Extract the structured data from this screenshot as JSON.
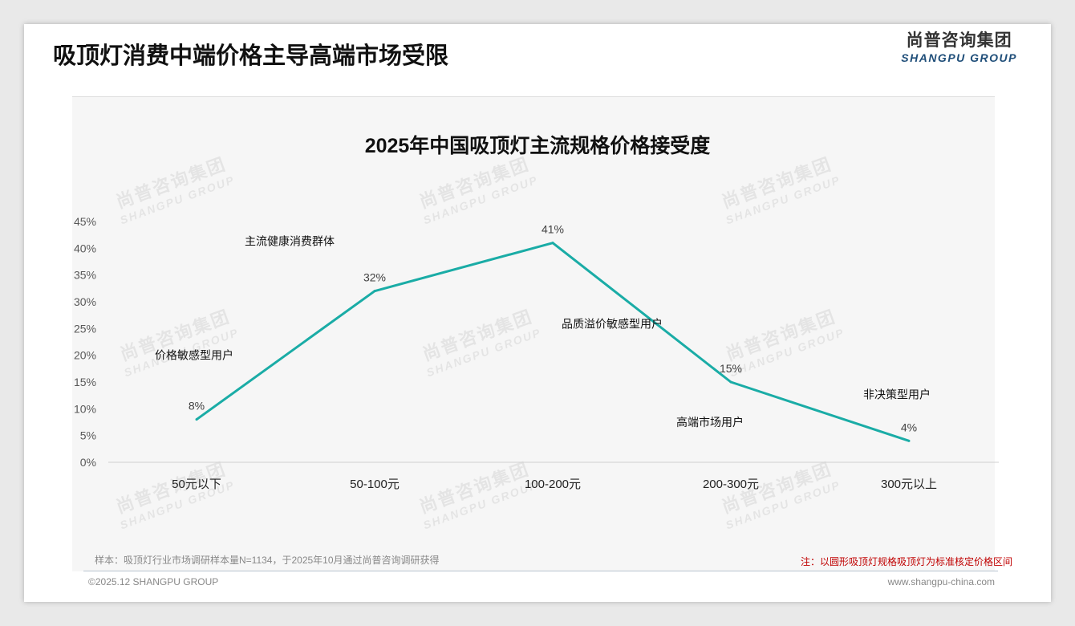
{
  "header": {
    "title": "吸顶灯消费中端价格主导高端市场受限",
    "logo_cn": "尚普咨询集团",
    "logo_en": "SHANGPU GROUP"
  },
  "chart_data": {
    "type": "line",
    "title": "2025年中国吸顶灯主流规格价格接受度",
    "categories": [
      "50元以下",
      "50-100元",
      "100-200元",
      "200-300元",
      "300元以上"
    ],
    "values": [
      8,
      32,
      41,
      15,
      4
    ],
    "data_labels": [
      "8%",
      "32%",
      "41%",
      "15%",
      "4%"
    ],
    "ylim": [
      0,
      45
    ],
    "yticks": [
      "0%",
      "5%",
      "10%",
      "15%",
      "20%",
      "25%",
      "30%",
      "35%",
      "40%",
      "45%"
    ],
    "series_color": "#1aaca6",
    "grid": false,
    "annotations": [
      {
        "text": "价格敏感型用户",
        "category": "50元以下"
      },
      {
        "text": "主流健康消费群体",
        "category": "50-100元"
      },
      {
        "text": "品质溢价敏感型用户",
        "category": "100-200元"
      },
      {
        "text": "高端市场用户",
        "category": "200-300元"
      },
      {
        "text": "非决策型用户",
        "category": "300元以上"
      }
    ]
  },
  "footer": {
    "sample": "样本：吸顶灯行业市场调研样本量N=1134，于2025年10月通过尚普咨询调研获得",
    "note": "注：以圆形吸顶灯规格吸顶灯为标准核定价格区间",
    "copyright": "©2025.12 SHANGPU GROUP",
    "website": "www.shangpu-china.com"
  }
}
